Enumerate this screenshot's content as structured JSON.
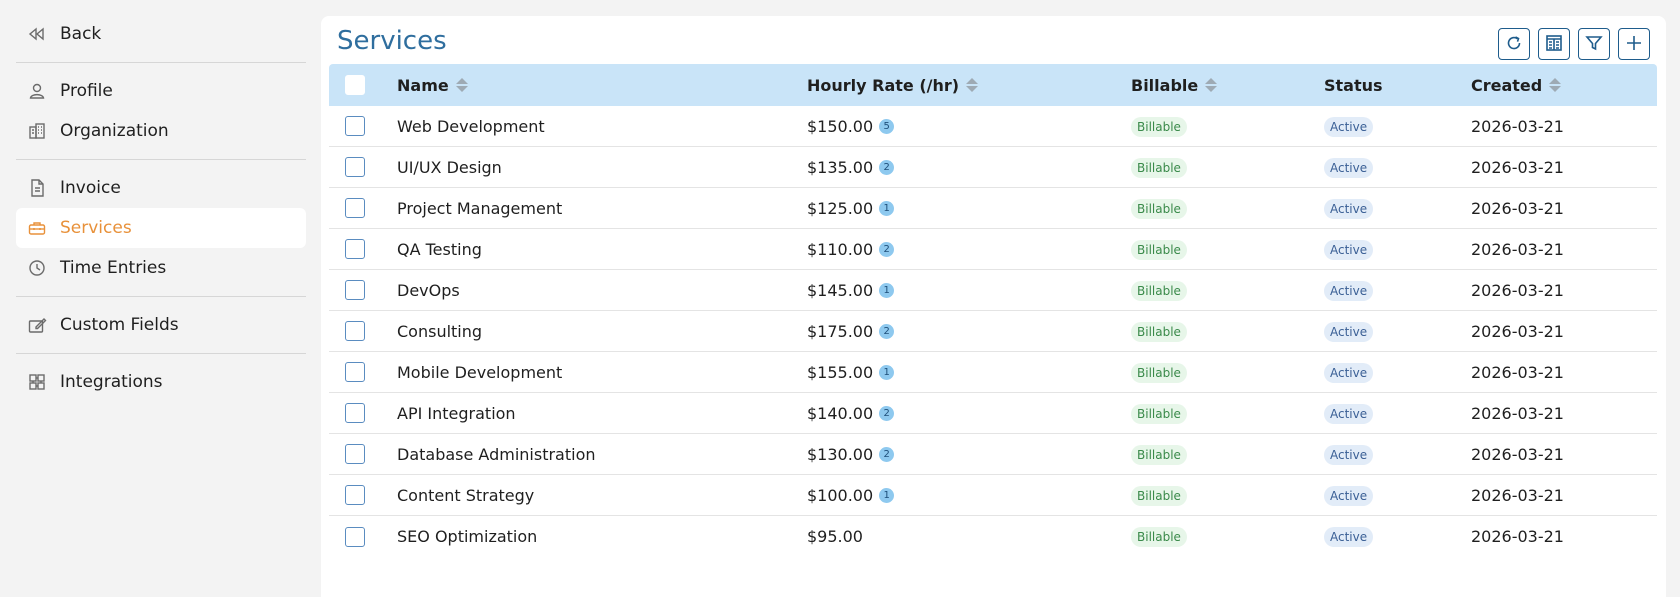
{
  "sidebar": {
    "back_label": "Back",
    "items": [
      {
        "label": "Profile",
        "icon": "user-icon"
      },
      {
        "label": "Organization",
        "icon": "building-icon"
      },
      {
        "label": "Invoice",
        "icon": "invoice-icon"
      },
      {
        "label": "Services",
        "icon": "toolbox-icon"
      },
      {
        "label": "Time Entries",
        "icon": "clock-icon"
      },
      {
        "label": "Custom Fields",
        "icon": "edit-field-icon"
      },
      {
        "label": "Integrations",
        "icon": "puzzle-icon"
      }
    ],
    "active": "Services"
  },
  "main": {
    "title": "Services",
    "toolbar": [
      "refresh-icon",
      "columns-icon",
      "filter-icon",
      "plus-icon"
    ],
    "columns": {
      "name": "Name",
      "rate": "Hourly Rate (/hr)",
      "billable": "Billable",
      "status": "Status",
      "created": "Created"
    },
    "rows": [
      {
        "name": "Web Development",
        "rate": "$150.00",
        "count": "5",
        "billable": "Billable",
        "status": "Active",
        "created": "2026-03-21"
      },
      {
        "name": "UI/UX Design",
        "rate": "$135.00",
        "count": "2",
        "billable": "Billable",
        "status": "Active",
        "created": "2026-03-21"
      },
      {
        "name": "Project Management",
        "rate": "$125.00",
        "count": "1",
        "billable": "Billable",
        "status": "Active",
        "created": "2026-03-21"
      },
      {
        "name": "QA Testing",
        "rate": "$110.00",
        "count": "2",
        "billable": "Billable",
        "status": "Active",
        "created": "2026-03-21"
      },
      {
        "name": "DevOps",
        "rate": "$145.00",
        "count": "1",
        "billable": "Billable",
        "status": "Active",
        "created": "2026-03-21"
      },
      {
        "name": "Consulting",
        "rate": "$175.00",
        "count": "2",
        "billable": "Billable",
        "status": "Active",
        "created": "2026-03-21"
      },
      {
        "name": "Mobile Development",
        "rate": "$155.00",
        "count": "1",
        "billable": "Billable",
        "status": "Active",
        "created": "2026-03-21"
      },
      {
        "name": "API Integration",
        "rate": "$140.00",
        "count": "2",
        "billable": "Billable",
        "status": "Active",
        "created": "2026-03-21"
      },
      {
        "name": "Database Administration",
        "rate": "$130.00",
        "count": "2",
        "billable": "Billable",
        "status": "Active",
        "created": "2026-03-21"
      },
      {
        "name": "Content Strategy",
        "rate": "$100.00",
        "count": "1",
        "billable": "Billable",
        "status": "Active",
        "created": "2026-03-21"
      },
      {
        "name": "SEO Optimization",
        "rate": "$95.00",
        "count": "",
        "billable": "Billable",
        "status": "Active",
        "created": "2026-03-21"
      }
    ]
  },
  "colors": {
    "accent_orange": "#e8913a",
    "title_blue": "#2f6e9e",
    "header_bg": "#c9e4f8"
  }
}
